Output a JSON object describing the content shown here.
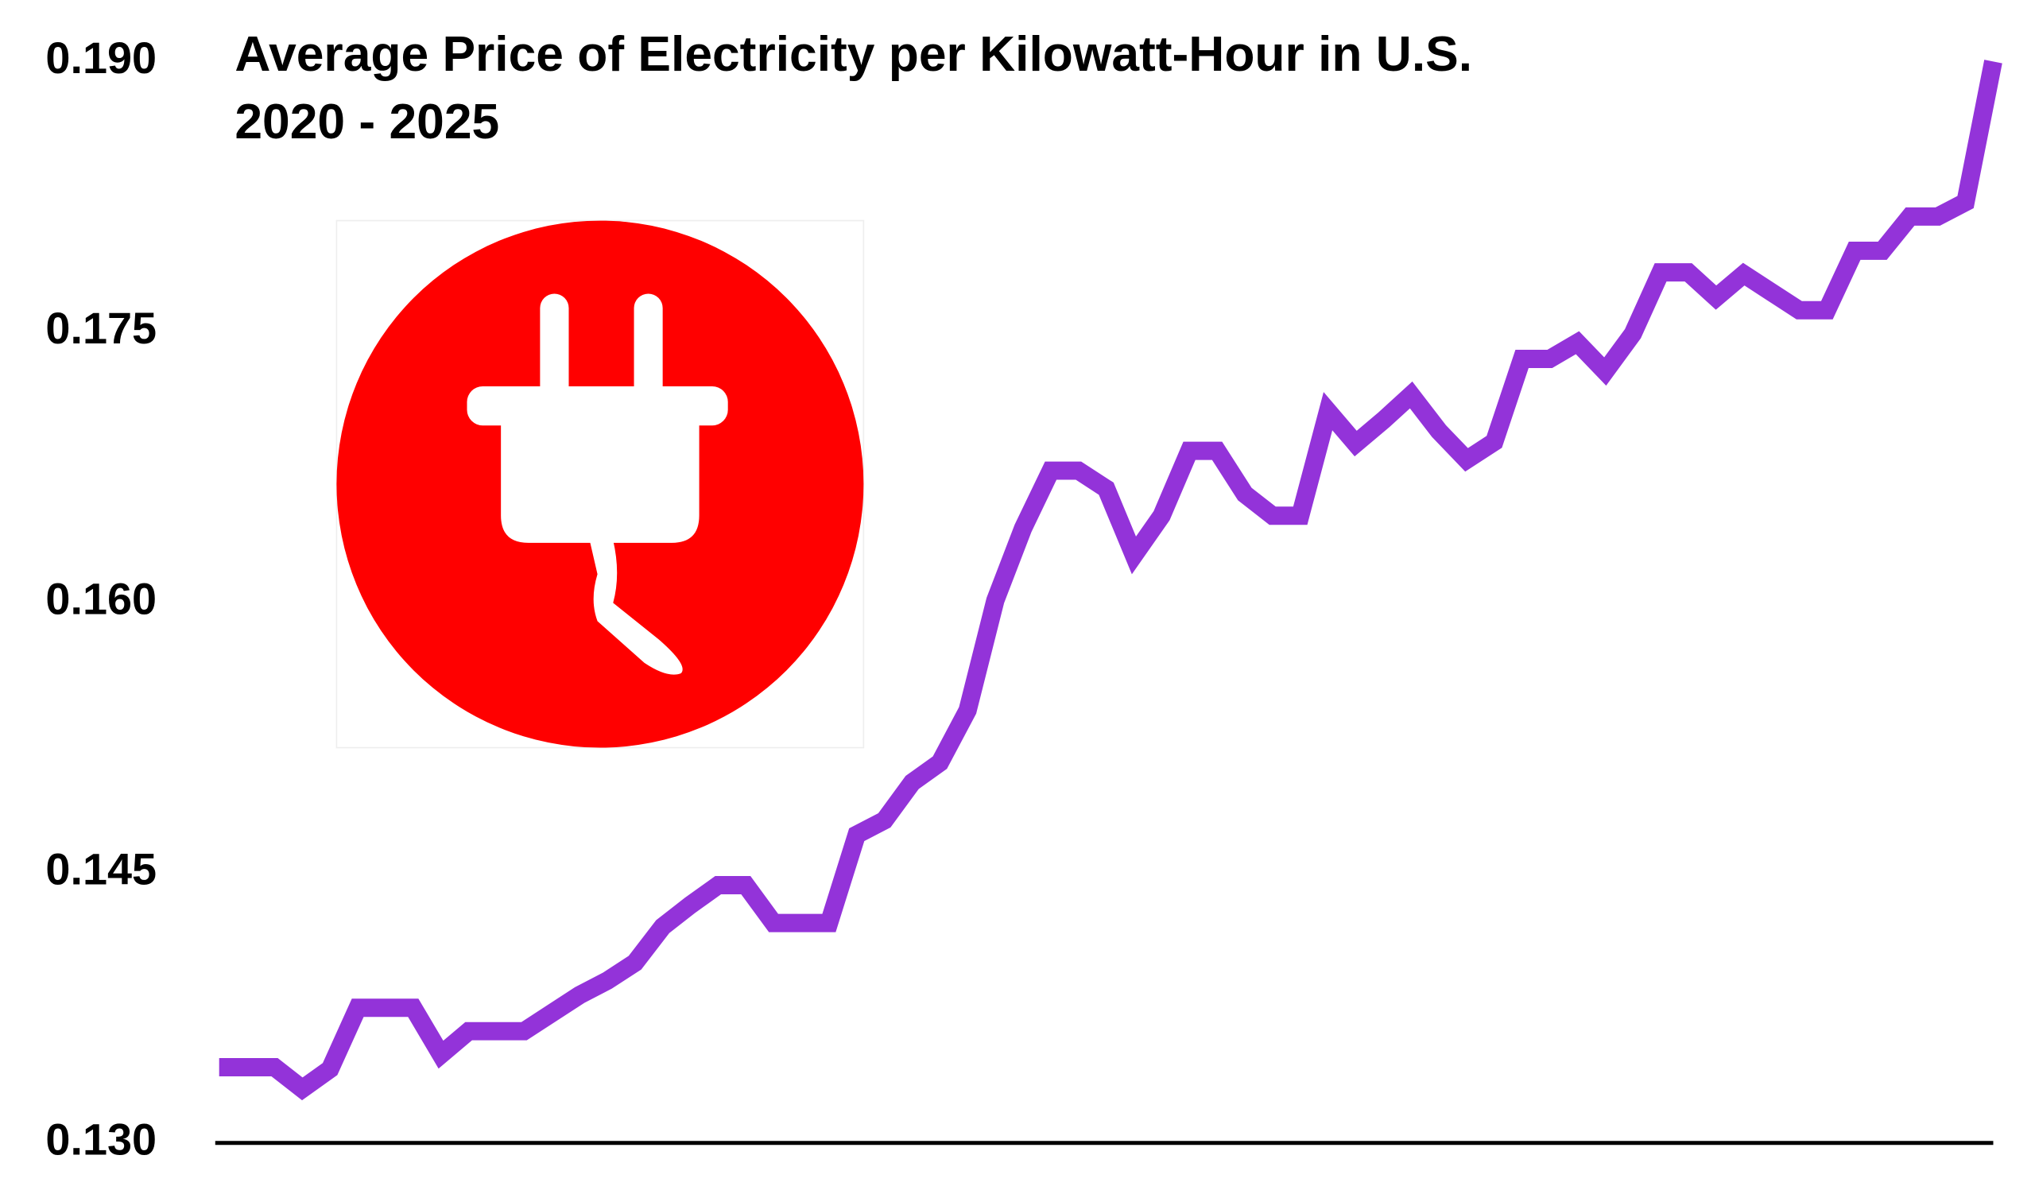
{
  "chart_data": {
    "type": "line",
    "title": "Average Price of Electricity per Kilowatt-Hour in U.S.",
    "subtitle": "2020 - 2025",
    "values": [
      0.1342,
      0.1342,
      0.1342,
      0.133,
      0.1341,
      0.1375,
      0.1375,
      0.1375,
      0.1349,
      0.1362,
      0.1362,
      0.1362,
      0.1372,
      0.1382,
      0.139,
      0.14,
      0.142,
      0.1432,
      0.1443,
      0.1443,
      0.1422,
      0.1422,
      0.1422,
      0.1471,
      0.1479,
      0.15,
      0.1511,
      0.154,
      0.1601,
      0.1641,
      0.1673,
      0.1673,
      0.1663,
      0.1626,
      0.1648,
      0.1684,
      0.1684,
      0.166,
      0.1648,
      0.1648,
      0.1706,
      0.1688,
      0.1701,
      0.1715,
      0.1695,
      0.1679,
      0.1689,
      0.1735,
      0.1735,
      0.1744,
      0.1728,
      0.1749,
      0.1783,
      0.1783,
      0.1769,
      0.1782,
      0.1772,
      0.1762,
      0.1762,
      0.1795,
      0.1795,
      0.1814,
      0.1814,
      0.1822,
      0.19
    ],
    "color": "#9333d9",
    "ylim": [
      0.13,
      0.19
    ],
    "yticks": [
      {
        "value": 0.13,
        "label": "0.130"
      },
      {
        "value": 0.145,
        "label": "0.145"
      },
      {
        "value": 0.16,
        "label": "0.160"
      },
      {
        "value": 0.175,
        "label": "0.175"
      },
      {
        "value": 0.19,
        "label": "0.190"
      }
    ],
    "grid": false
  }
}
